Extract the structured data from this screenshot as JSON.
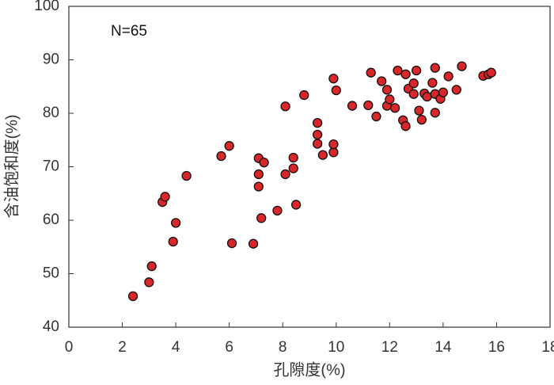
{
  "chart_data": {
    "type": "scatter",
    "x_label": "孔隙度(%)",
    "y_label": "含油饱和度(%)",
    "annotation": "N=65",
    "xlim": [
      0,
      18
    ],
    "xticks": [
      0,
      2,
      4,
      6,
      8,
      10,
      12,
      14,
      16,
      18
    ],
    "ylim": [
      40,
      100
    ],
    "yticks": [
      40,
      50,
      60,
      70,
      80,
      90,
      100
    ],
    "color": "#d9262a",
    "x": [
      2.4,
      3.0,
      3.1,
      3.5,
      3.6,
      3.9,
      4.0,
      4.4,
      5.7,
      6.0,
      6.1,
      6.9,
      7.1,
      7.1,
      7.1,
      7.2,
      7.3,
      7.8,
      8.1,
      8.1,
      8.4,
      8.4,
      8.5,
      8.8,
      9.3,
      9.3,
      9.3,
      9.5,
      9.9,
      9.9,
      9.9,
      10.0,
      10.6,
      11.2,
      11.3,
      11.5,
      11.7,
      11.9,
      11.9,
      12.0,
      12.2,
      12.3,
      12.5,
      12.6,
      12.6,
      12.7,
      12.9,
      12.9,
      13.0,
      13.1,
      13.2,
      13.3,
      13.4,
      13.6,
      13.7,
      13.7,
      13.7,
      13.9,
      14.0,
      14.2,
      14.5,
      14.7,
      15.5,
      15.7,
      15.8
    ],
    "values": [
      45.8,
      48.4,
      51.4,
      63.4,
      64.4,
      56.0,
      59.5,
      68.3,
      72.0,
      73.9,
      55.7,
      55.6,
      68.6,
      71.6,
      66.3,
      60.4,
      70.8,
      61.8,
      81.3,
      68.6,
      69.7,
      71.7,
      62.9,
      83.4,
      78.2,
      76.0,
      74.3,
      72.2,
      72.7,
      74.2,
      86.5,
      84.3,
      81.4,
      81.5,
      87.6,
      79.4,
      86.0,
      81.4,
      84.4,
      82.6,
      81.0,
      88.0,
      78.7,
      77.6,
      87.3,
      84.6,
      83.6,
      85.6,
      88.0,
      80.5,
      78.8,
      83.7,
      83.1,
      85.7,
      88.5,
      83.6,
      80.1,
      82.7,
      83.9,
      86.9,
      84.4,
      88.8,
      87.0,
      87.3,
      87.6
    ]
  }
}
